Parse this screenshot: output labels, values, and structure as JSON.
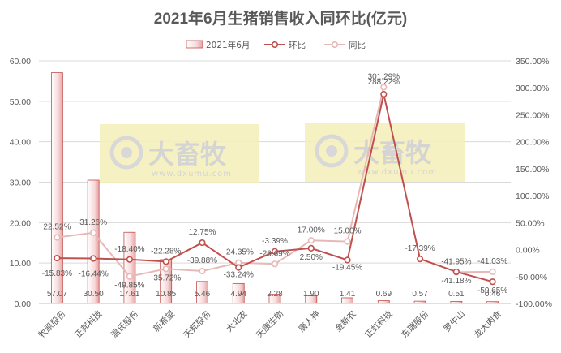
{
  "chart_data": {
    "type": "bar",
    "title": "2021年6月生猪销售收入同环比(亿元)",
    "categories": [
      "牧原股份",
      "正邦科技",
      "温氏股份",
      "新希望",
      "天邦股份",
      "大北农",
      "天康生物",
      "唐人神",
      "金新农",
      "正虹科技",
      "东瑞股份",
      "罗牛山",
      "龙大肉食"
    ],
    "series": [
      {
        "name": "2021年6月",
        "kind": "bar",
        "axis": "left",
        "color": "#f2c4c4",
        "values": [
          57.07,
          30.5,
          17.61,
          10.85,
          5.46,
          4.94,
          2.28,
          1.9,
          1.41,
          0.69,
          0.57,
          0.51,
          0.46
        ],
        "labels": [
          "57.07",
          "30.50",
          "17.61",
          "10.85",
          "5.46",
          "4.94",
          "2.28",
          "1.90",
          "1.41",
          "0.69",
          "0.57",
          "0.51",
          "0.46"
        ]
      },
      {
        "name": "环比",
        "kind": "line",
        "axis": "right",
        "color": "#c0504d",
        "values": [
          -15.83,
          -16.44,
          -18.4,
          -22.28,
          12.75,
          -33.24,
          -3.39,
          2.5,
          -19.45,
          288.22,
          -17.39,
          -41.18,
          -59.65
        ],
        "labels": [
          "-15.83%",
          "-16.44%",
          "-18.40%",
          "-22.28%",
          "12.75%",
          "-33.24%",
          "-3.39%",
          "2.50%",
          "-19.45%",
          "288.22%",
          "-17.39%",
          "-41.18%",
          "-59.65%"
        ]
      },
      {
        "name": "同比",
        "kind": "line",
        "axis": "right",
        "color": "#e6b9b8",
        "values": [
          22.52,
          31.26,
          -49.85,
          -35.72,
          -39.88,
          -24.35,
          -26.69,
          17.0,
          15.0,
          301.29,
          null,
          -41.95,
          -41.03
        ],
        "labels": [
          "22.52%",
          "31.26%",
          "-49.85%",
          "-35.72%",
          "-39.88%",
          "-24.35%",
          "-26.69%",
          "17.00%",
          "15.00%",
          "301.29%",
          "",
          "-41.95%",
          "-41.03%"
        ]
      }
    ],
    "y_left": {
      "ylim": [
        0,
        60
      ],
      "ticks": [
        "0.00",
        "10.00",
        "20.00",
        "30.00",
        "40.00",
        "50.00",
        "60.00"
      ]
    },
    "y_right": {
      "ylim": [
        -100,
        350
      ],
      "ticks": [
        "-100.00%",
        "-50.00%",
        "0.00%",
        "50.00%",
        "100.00%",
        "150.00%",
        "200.00%",
        "250.00%",
        "300.00%",
        "350.00%"
      ]
    },
    "grid": true,
    "legend": "top",
    "watermark": {
      "text": "大畜牧",
      "subtext": "www.dxumu.com",
      "color": "#f5efb8"
    }
  }
}
